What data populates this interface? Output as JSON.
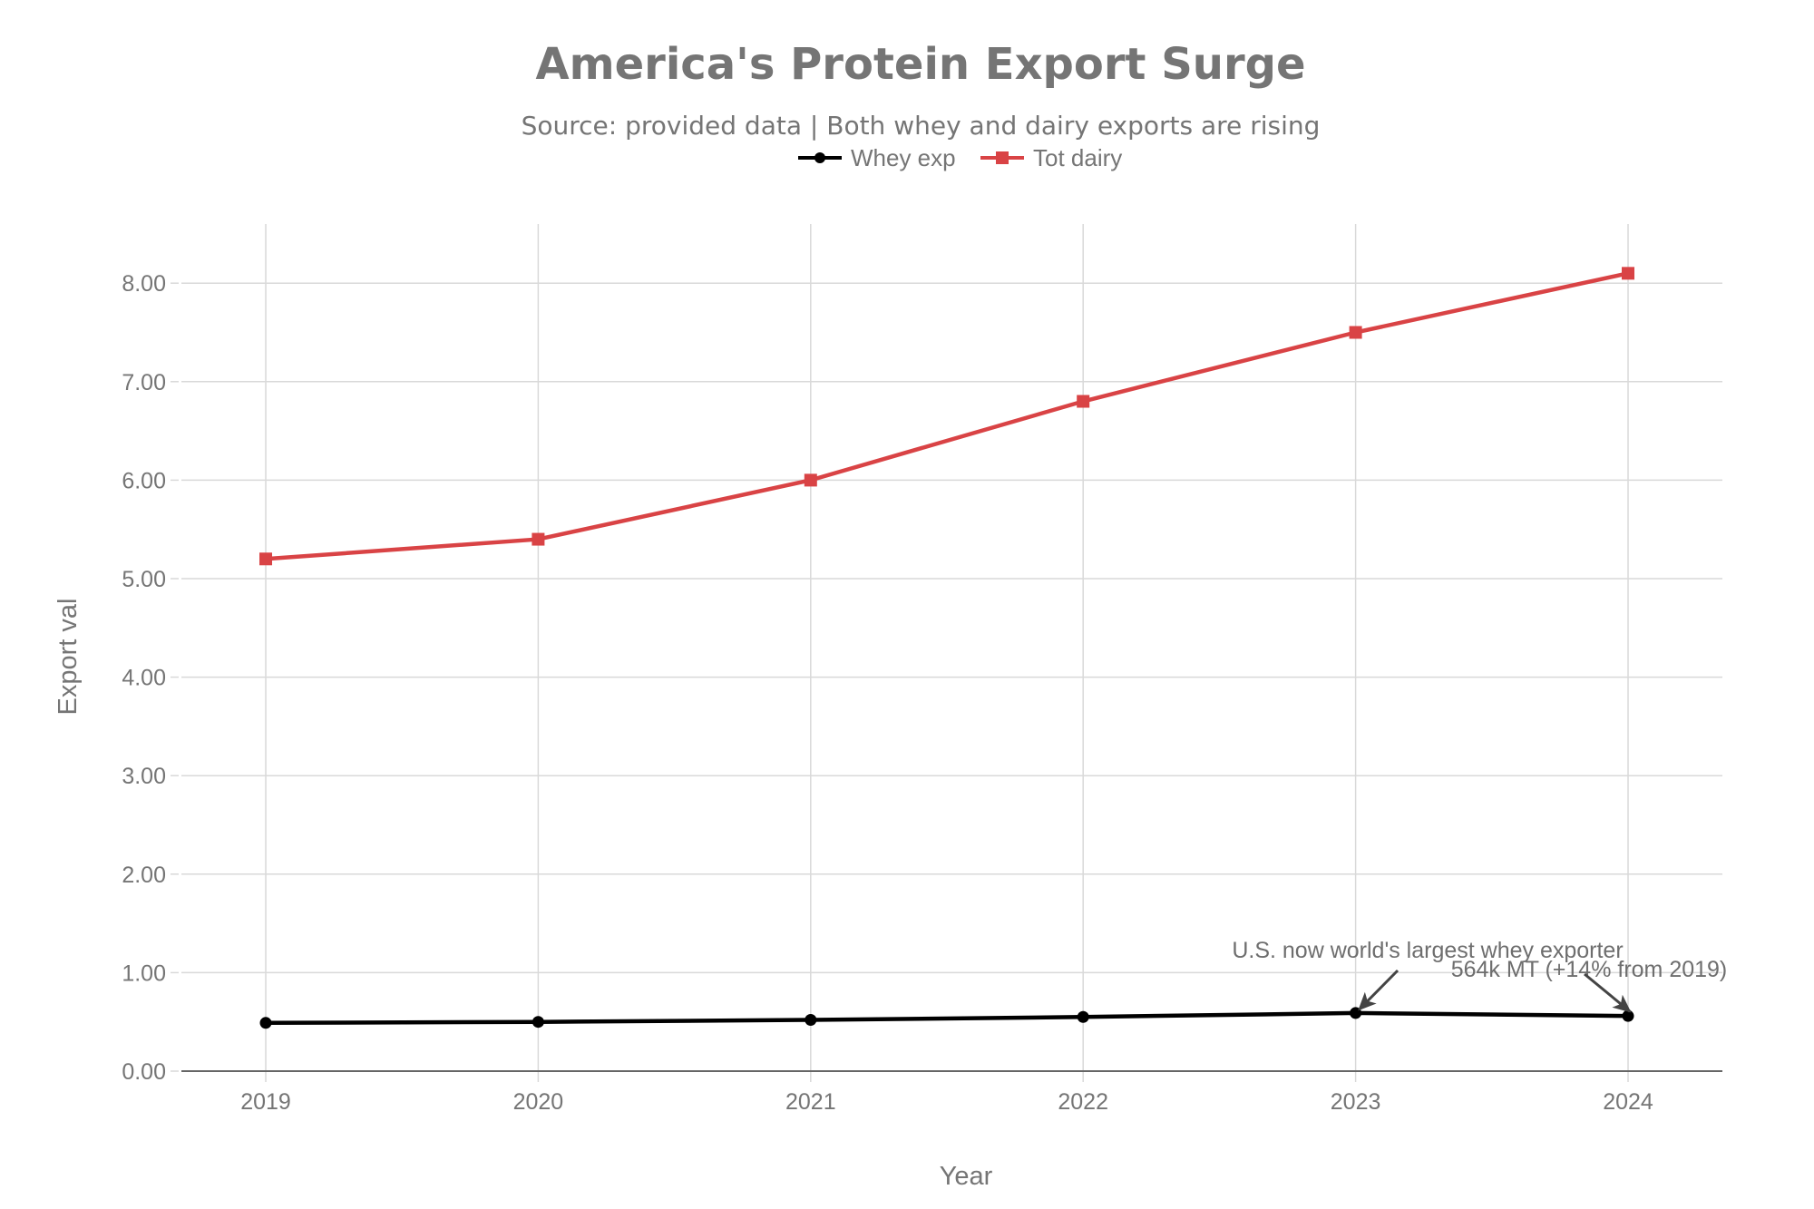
{
  "chart_data": {
    "type": "line",
    "title": "America's Protein Export Surge",
    "subtitle": "Source: provided data | Both whey and dairy exports are rising",
    "xlabel": "Year",
    "ylabel": "Export val",
    "x": [
      2019,
      2020,
      2021,
      2022,
      2023,
      2024
    ],
    "x_tick_labels": [
      "2019",
      "2020",
      "2021",
      "2022",
      "2023",
      "2024"
    ],
    "y_ticks": [
      0,
      1,
      2,
      3,
      4,
      5,
      6,
      7,
      8
    ],
    "y_tick_labels": [
      "0.00",
      "1.00",
      "2.00",
      "3.00",
      "4.00",
      "5.00",
      "6.00",
      "7.00",
      "8.00"
    ],
    "xlim": [
      2018.7,
      2024.35
    ],
    "ylim": [
      0,
      8.6
    ],
    "grid": true,
    "legend_position": "top-center",
    "series": [
      {
        "name": "Whey exp",
        "color": "#000000",
        "marker": "circle",
        "values": [
          0.49,
          0.5,
          0.52,
          0.55,
          0.59,
          0.56
        ]
      },
      {
        "name": "Tot dairy",
        "color": "#d94345",
        "marker": "square",
        "values": [
          5.2,
          5.4,
          6.0,
          6.8,
          7.5,
          8.1
        ]
      }
    ],
    "annotations": [
      {
        "text": "U.S. now world's largest whey exporter",
        "series": "Whey exp",
        "x": 2023,
        "y": 0.59
      },
      {
        "text": "564k MT (+14% from 2019)",
        "series": "Whey exp",
        "x": 2024,
        "y": 0.56
      }
    ]
  }
}
